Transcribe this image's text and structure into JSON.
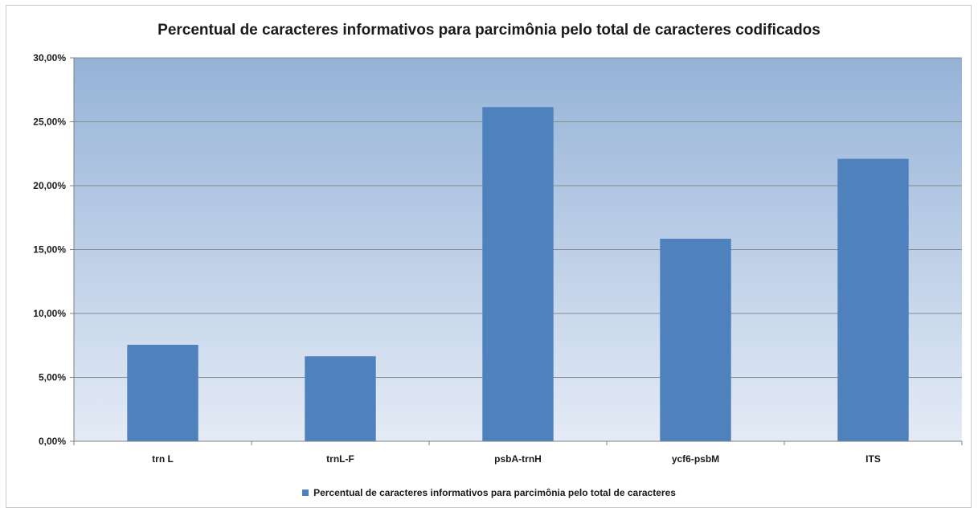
{
  "chart_data": {
    "type": "bar",
    "title": "Percentual de caracteres informativos para parcimônia pelo total de caracteres codificados",
    "categories": [
      "trn L",
      "trnL-F",
      "psbA-trnH",
      "ycf6-psbM",
      "ITS"
    ],
    "series": [
      {
        "name": "Percentual de caracteres informativos para parcimônia pelo total de caracteres",
        "values": [
          7.55,
          6.65,
          26.15,
          15.85,
          22.1
        ],
        "color": "#4f81bd"
      }
    ],
    "ylim": [
      0,
      30
    ],
    "yticks": [
      0,
      5,
      10,
      15,
      20,
      25,
      30
    ],
    "ytick_labels": [
      "0,00%",
      "5,00%",
      "10,00%",
      "15,00%",
      "20,00%",
      "25,00%",
      "30,00%"
    ],
    "xlabel": "",
    "ylabel": "",
    "grid": true,
    "legend_position": "bottom",
    "plot_background_top": "#95b3d7",
    "plot_background_bottom": "#e4ebf6",
    "gridline_color": "#8a8a8a"
  }
}
